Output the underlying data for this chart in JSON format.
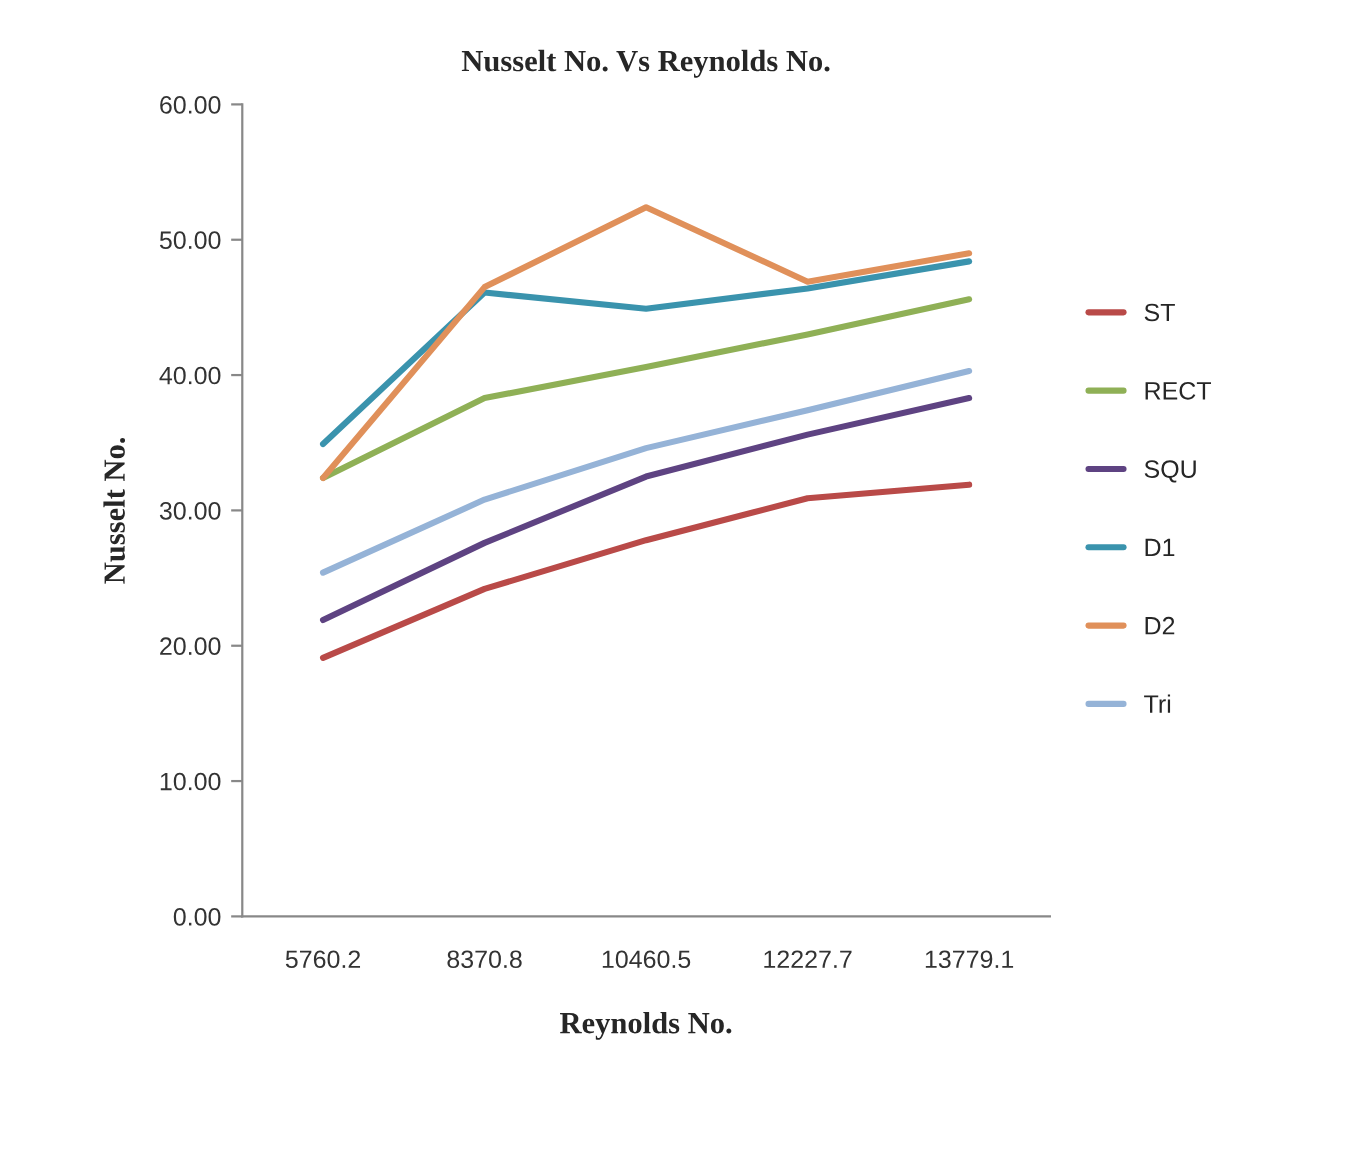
{
  "chart_data": {
    "type": "line",
    "title": "Nusselt No. Vs Reynolds No.",
    "xlabel": "Reynolds No.",
    "ylabel": "Nusselt No.",
    "categories": [
      "5760.2",
      "8370.8",
      "10460.5",
      "12227.7",
      "13779.1"
    ],
    "series": [
      {
        "name": "ST",
        "color": "#b94a48",
        "values": [
          19.1,
          24.2,
          27.8,
          30.9,
          31.9
        ]
      },
      {
        "name": "RECT",
        "color": "#8fb056",
        "values": [
          32.4,
          38.3,
          40.6,
          43.0,
          45.6
        ]
      },
      {
        "name": "SQU",
        "color": "#5e4382",
        "values": [
          21.9,
          27.6,
          32.5,
          35.6,
          38.3
        ]
      },
      {
        "name": "D1",
        "color": "#3a93ad",
        "values": [
          34.9,
          46.1,
          44.9,
          46.4,
          48.4
        ]
      },
      {
        "name": "D2",
        "color": "#e0905a",
        "values": [
          32.4,
          46.5,
          52.4,
          46.9,
          49.0
        ]
      },
      {
        "name": "Tri",
        "color": "#95b3d7",
        "values": [
          25.4,
          30.8,
          34.6,
          37.4,
          40.3
        ]
      }
    ],
    "ylim": [
      0,
      60
    ],
    "yticks": [
      {
        "value": 0,
        "label": "0.00"
      },
      {
        "value": 10,
        "label": "10.00"
      },
      {
        "value": 20,
        "label": "20.00"
      },
      {
        "value": 30,
        "label": "30.00"
      },
      {
        "value": 40,
        "label": "40.00"
      },
      {
        "value": 50,
        "label": "50.00"
      },
      {
        "value": 60,
        "label": "60.00"
      }
    ],
    "grid": false,
    "legend": "right",
    "marker": "none",
    "line_style": "solid"
  }
}
